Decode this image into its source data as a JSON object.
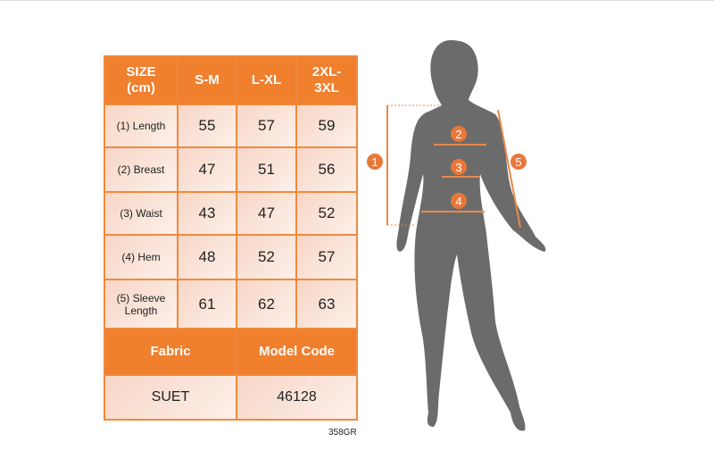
{
  "table": {
    "headers": [
      "SIZE\n(cm)",
      "S-M",
      "L-XL",
      "2XL-\n3XL"
    ],
    "rows": [
      {
        "label": "(1) Length",
        "values": [
          "55",
          "57",
          "59"
        ]
      },
      {
        "label": "(2) Breast",
        "values": [
          "47",
          "51",
          "56"
        ]
      },
      {
        "label": "(3) Waist",
        "values": [
          "43",
          "47",
          "52"
        ]
      },
      {
        "label": "(4) Hem",
        "values": [
          "48",
          "52",
          "57"
        ]
      },
      {
        "label": "(5) Sleeve\nLength",
        "values": [
          "61",
          "62",
          "63"
        ]
      }
    ],
    "fabric_label": "Fabric",
    "model_code_label": "Model Code",
    "fabric": "SUET",
    "model_code": "46128"
  },
  "code": "358GR",
  "markers": [
    "1",
    "2",
    "3",
    "4",
    "5"
  ],
  "colors": {
    "accent": "#f07f2e",
    "silhouette": "#6b6b6b"
  }
}
